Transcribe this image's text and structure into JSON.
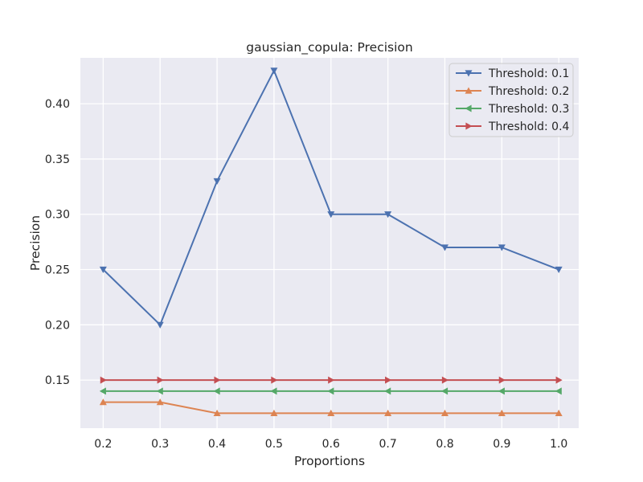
{
  "chart_data": {
    "type": "line",
    "title": "gaussian_copula: Precision",
    "xlabel": "Proportions",
    "ylabel": "Precision",
    "x": [
      0.2,
      0.3,
      0.4,
      0.5,
      0.6,
      0.7,
      0.8,
      0.9,
      1.0
    ],
    "x_tick_labels": [
      "0.2",
      "0.3",
      "0.4",
      "0.5",
      "0.6",
      "0.7",
      "0.8",
      "0.9",
      "1.0"
    ],
    "y_ticks": [
      0.15,
      0.2,
      0.25,
      0.3,
      0.35,
      0.4
    ],
    "y_tick_labels": [
      "0.15",
      "0.20",
      "0.25",
      "0.30",
      "0.35",
      "0.40"
    ],
    "xlim": [
      0.16,
      1.035
    ],
    "ylim": [
      0.1065,
      0.4415
    ],
    "grid": true,
    "legend_position": "top-right",
    "background": "#eaeaf2",
    "series": [
      {
        "name": "Threshold: 0.1",
        "color": "#4c72b0",
        "marker": "triangle-down",
        "values": [
          0.25,
          0.2,
          0.33,
          0.43,
          0.3,
          0.3,
          0.27,
          0.27,
          0.25
        ]
      },
      {
        "name": "Threshold: 0.2",
        "color": "#dd8452",
        "marker": "triangle-up",
        "values": [
          0.13,
          0.13,
          0.12,
          0.12,
          0.12,
          0.12,
          0.12,
          0.12,
          0.12
        ]
      },
      {
        "name": "Threshold: 0.3",
        "color": "#55a868",
        "marker": "triangle-left",
        "values": [
          0.14,
          0.14,
          0.14,
          0.14,
          0.14,
          0.14,
          0.14,
          0.14,
          0.14
        ]
      },
      {
        "name": "Threshold: 0.4",
        "color": "#c44e52",
        "marker": "triangle-right",
        "values": [
          0.15,
          0.15,
          0.15,
          0.15,
          0.15,
          0.15,
          0.15,
          0.15,
          0.15
        ]
      }
    ]
  }
}
